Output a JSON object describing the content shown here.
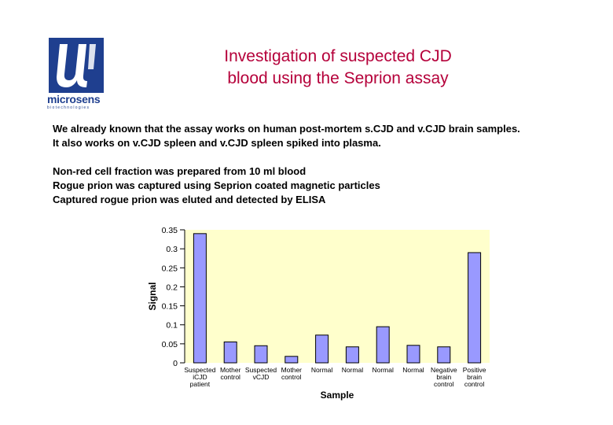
{
  "header": {
    "logo_text": "microsens",
    "logo_subtext": "biotechnologies",
    "title_line1": "Investigation of suspected CJD",
    "title_line2": "blood using the Seprion assay"
  },
  "body": {
    "para1": [
      "We already known that the assay works on human post-mortem s.CJD and v.CJD brain samples.",
      "It also works on v.CJD spleen and v.CJD spleen spiked into plasma."
    ],
    "para2": [
      "Non-red cell fraction was prepared from 10 ml blood",
      "Rogue prion was captured using Seprion coated magnetic particles",
      "Captured rogue prion was eluted and detected by ELISA"
    ]
  },
  "colors": {
    "title": "#b5003a",
    "bar_fill": "#9999ff",
    "plot_bg": "#ffffcc",
    "logo_blue": "#1f3f8f"
  },
  "chart_data": {
    "type": "bar",
    "title": "",
    "xlabel": "Sample",
    "ylabel": "Signal",
    "ylim": [
      0,
      0.35
    ],
    "yticks": [
      "0",
      "0.05",
      "0.1",
      "0.15",
      "0.2",
      "0.25",
      "0.3",
      "0.35"
    ],
    "grid": false,
    "categories": [
      [
        "Suspected",
        "iCJD",
        "patient"
      ],
      [
        "Mother",
        "control"
      ],
      [
        "Suspected",
        "vCJD"
      ],
      [
        "Mother",
        "control"
      ],
      [
        "Normal"
      ],
      [
        "Normal"
      ],
      [
        "Normal"
      ],
      [
        "Normal"
      ],
      [
        "Negative",
        "brain",
        "control"
      ],
      [
        "Positive",
        "brain",
        "control"
      ]
    ],
    "values": [
      0.34,
      0.055,
      0.045,
      0.017,
      0.073,
      0.042,
      0.095,
      0.046,
      0.042,
      0.29
    ]
  }
}
